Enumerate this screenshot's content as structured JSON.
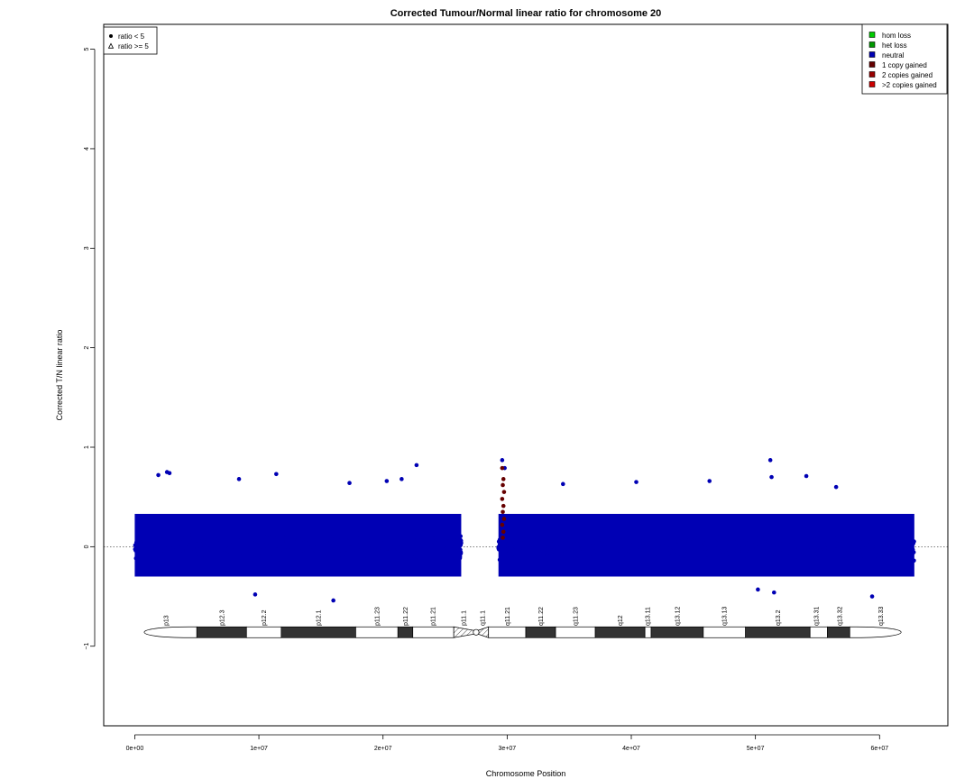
{
  "chart_data": {
    "type": "scatter",
    "title": "Corrected Tumour/Normal linear ratio for chromosome  20",
    "xlabel": "Chromosome Position",
    "ylabel": "Corrected T/N linear ratio",
    "xlim": [
      -2500000,
      65500000
    ],
    "ylim": [
      -1.8,
      5.25
    ],
    "x_ticks": [
      {
        "value": 0,
        "label": "0e+00"
      },
      {
        "value": 10000000,
        "label": "1e+07"
      },
      {
        "value": 20000000,
        "label": "2e+07"
      },
      {
        "value": 30000000,
        "label": "3e+07"
      },
      {
        "value": 40000000,
        "label": "4e+07"
      },
      {
        "value": 50000000,
        "label": "5e+07"
      },
      {
        "value": 60000000,
        "label": "6e+07"
      }
    ],
    "y_ticks": [
      {
        "value": -1,
        "label": "−1"
      },
      {
        "value": 0,
        "label": "0"
      },
      {
        "value": 1,
        "label": "1"
      },
      {
        "value": 2,
        "label": "2"
      },
      {
        "value": 3,
        "label": "3"
      },
      {
        "value": 4,
        "label": "4"
      },
      {
        "value": 5,
        "label": "5"
      }
    ],
    "reference_line_y": 0,
    "shape_legend": {
      "placement": "top-left",
      "entries": [
        {
          "symbol": "circle",
          "label": "ratio < 5"
        },
        {
          "symbol": "triangle",
          "label": "ratio >= 5"
        }
      ]
    },
    "color_legend": {
      "placement": "top-right",
      "entries": [
        {
          "label": "hom loss",
          "color": "#00cc00"
        },
        {
          "label": "het loss",
          "color": "#009900"
        },
        {
          "label": "neutral",
          "color": "#0000b4"
        },
        {
          "label": "1 copy gained",
          "color": "#660000"
        },
        {
          "label": "2 copies gained",
          "color": "#990000"
        },
        {
          "label": ">2 copies gained",
          "color": "#cc0000"
        }
      ]
    },
    "series": [
      {
        "name": "neutral",
        "color": "#0000b4",
        "segments": [
          {
            "x_start": 0,
            "x_end": 26300000,
            "typical_y": [
              -0.3,
              0.33
            ],
            "outer_y": [
              -0.48,
              0.55
            ]
          },
          {
            "x_start": 29300000,
            "x_end": 62800000,
            "typical_y": [
              -0.3,
              0.33
            ],
            "outer_y": [
              -0.48,
              0.55
            ]
          }
        ],
        "outliers": [
          {
            "x": 1900000,
            "y": 0.72
          },
          {
            "x": 2600000,
            "y": 0.75
          },
          {
            "x": 2800000,
            "y": 0.74
          },
          {
            "x": 8400000,
            "y": 0.68
          },
          {
            "x": 11400000,
            "y": 0.73
          },
          {
            "x": 17300000,
            "y": 0.64
          },
          {
            "x": 20300000,
            "y": 0.66
          },
          {
            "x": 21500000,
            "y": 0.68
          },
          {
            "x": 22700000,
            "y": 0.82
          },
          {
            "x": 16000000,
            "y": -0.54
          },
          {
            "x": 9700000,
            "y": -0.48
          },
          {
            "x": 29600000,
            "y": 0.87
          },
          {
            "x": 29800000,
            "y": 0.79
          },
          {
            "x": 34500000,
            "y": 0.63
          },
          {
            "x": 40400000,
            "y": 0.65
          },
          {
            "x": 46300000,
            "y": 0.66
          },
          {
            "x": 51200000,
            "y": 0.87
          },
          {
            "x": 51300000,
            "y": 0.7
          },
          {
            "x": 54100000,
            "y": 0.71
          },
          {
            "x": 56500000,
            "y": 0.6
          },
          {
            "x": 50200000,
            "y": -0.43
          },
          {
            "x": 51500000,
            "y": -0.46
          },
          {
            "x": 59400000,
            "y": -0.5
          }
        ]
      },
      {
        "name": "1 copy gained",
        "color": "#660000",
        "points": [
          {
            "x": 29600000,
            "y": 0.79
          },
          {
            "x": 29700000,
            "y": 0.68
          },
          {
            "x": 29650000,
            "y": 0.62
          },
          {
            "x": 29750000,
            "y": 0.55
          },
          {
            "x": 29600000,
            "y": 0.48
          },
          {
            "x": 29700000,
            "y": 0.41
          },
          {
            "x": 29650000,
            "y": 0.35
          },
          {
            "x": 29750000,
            "y": 0.28
          },
          {
            "x": 29600000,
            "y": 0.22
          },
          {
            "x": 29700000,
            "y": 0.15
          },
          {
            "x": 29650000,
            "y": 0.09
          }
        ]
      }
    ],
    "ideogram": {
      "y": -0.86,
      "centromere": 27500000,
      "bands": [
        {
          "name": "p13",
          "start": 0,
          "end": 5000000,
          "stain": "white"
        },
        {
          "name": "p12.3",
          "start": 5000000,
          "end": 9000000,
          "stain": "dark"
        },
        {
          "name": "p12.2",
          "start": 9000000,
          "end": 11800000,
          "stain": "white"
        },
        {
          "name": "p12.1",
          "start": 11800000,
          "end": 17800000,
          "stain": "dark"
        },
        {
          "name": "p11.23",
          "start": 17800000,
          "end": 21200000,
          "stain": "white"
        },
        {
          "name": "p11.22",
          "start": 21200000,
          "end": 22400000,
          "stain": "dark"
        },
        {
          "name": "p11.21",
          "start": 22400000,
          "end": 25700000,
          "stain": "white"
        },
        {
          "name": "p11.1",
          "start": 25700000,
          "end": 27500000,
          "stain": "hatched"
        },
        {
          "name": "q11.1",
          "start": 27500000,
          "end": 28500000,
          "stain": "hatched"
        },
        {
          "name": "q11.21",
          "start": 28500000,
          "end": 31500000,
          "stain": "white"
        },
        {
          "name": "q11.22",
          "start": 31500000,
          "end": 33900000,
          "stain": "dark"
        },
        {
          "name": "q11.23",
          "start": 33900000,
          "end": 37100000,
          "stain": "white"
        },
        {
          "name": "q12",
          "start": 37100000,
          "end": 41100000,
          "stain": "dark"
        },
        {
          "name": "q13.11",
          "start": 41100000,
          "end": 41600000,
          "stain": "white"
        },
        {
          "name": "q13.12",
          "start": 41600000,
          "end": 45800000,
          "stain": "dark"
        },
        {
          "name": "q13.13",
          "start": 45800000,
          "end": 49200000,
          "stain": "white"
        },
        {
          "name": "q13.2",
          "start": 49200000,
          "end": 54400000,
          "stain": "dark"
        },
        {
          "name": "q13.31",
          "start": 54400000,
          "end": 55800000,
          "stain": "white"
        },
        {
          "name": "q13.32",
          "start": 55800000,
          "end": 57600000,
          "stain": "dark"
        },
        {
          "name": "q13.33",
          "start": 57600000,
          "end": 62500000,
          "stain": "white"
        }
      ],
      "labels": [
        {
          "text": "p13",
          "x": 2500000
        },
        {
          "text": "p12.3",
          "x": 7000000
        },
        {
          "text": "p12.2",
          "x": 10400000
        },
        {
          "text": "p12.1",
          "x": 14800000
        },
        {
          "text": "p11.23",
          "x": 19500000
        },
        {
          "text": "p11.22",
          "x": 21800000
        },
        {
          "text": "p11.21",
          "x": 24000000
        },
        {
          "text": "p11.1",
          "x": 26500000
        },
        {
          "text": "q11.1",
          "x": 28000000
        },
        {
          "text": "q11.21",
          "x": 30000000
        },
        {
          "text": "q11.22",
          "x": 32700000
        },
        {
          "text": "q11.23",
          "x": 35500000
        },
        {
          "text": "q12",
          "x": 39100000
        },
        {
          "text": "q13.11",
          "x": 41300000
        },
        {
          "text": "q13.12",
          "x": 43700000
        },
        {
          "text": "q13.13",
          "x": 47500000
        },
        {
          "text": "q13.2",
          "x": 51800000
        },
        {
          "text": "q13.31",
          "x": 54900000
        },
        {
          "text": "q13.32",
          "x": 56800000
        },
        {
          "text": "q13.33",
          "x": 60100000
        }
      ]
    }
  }
}
